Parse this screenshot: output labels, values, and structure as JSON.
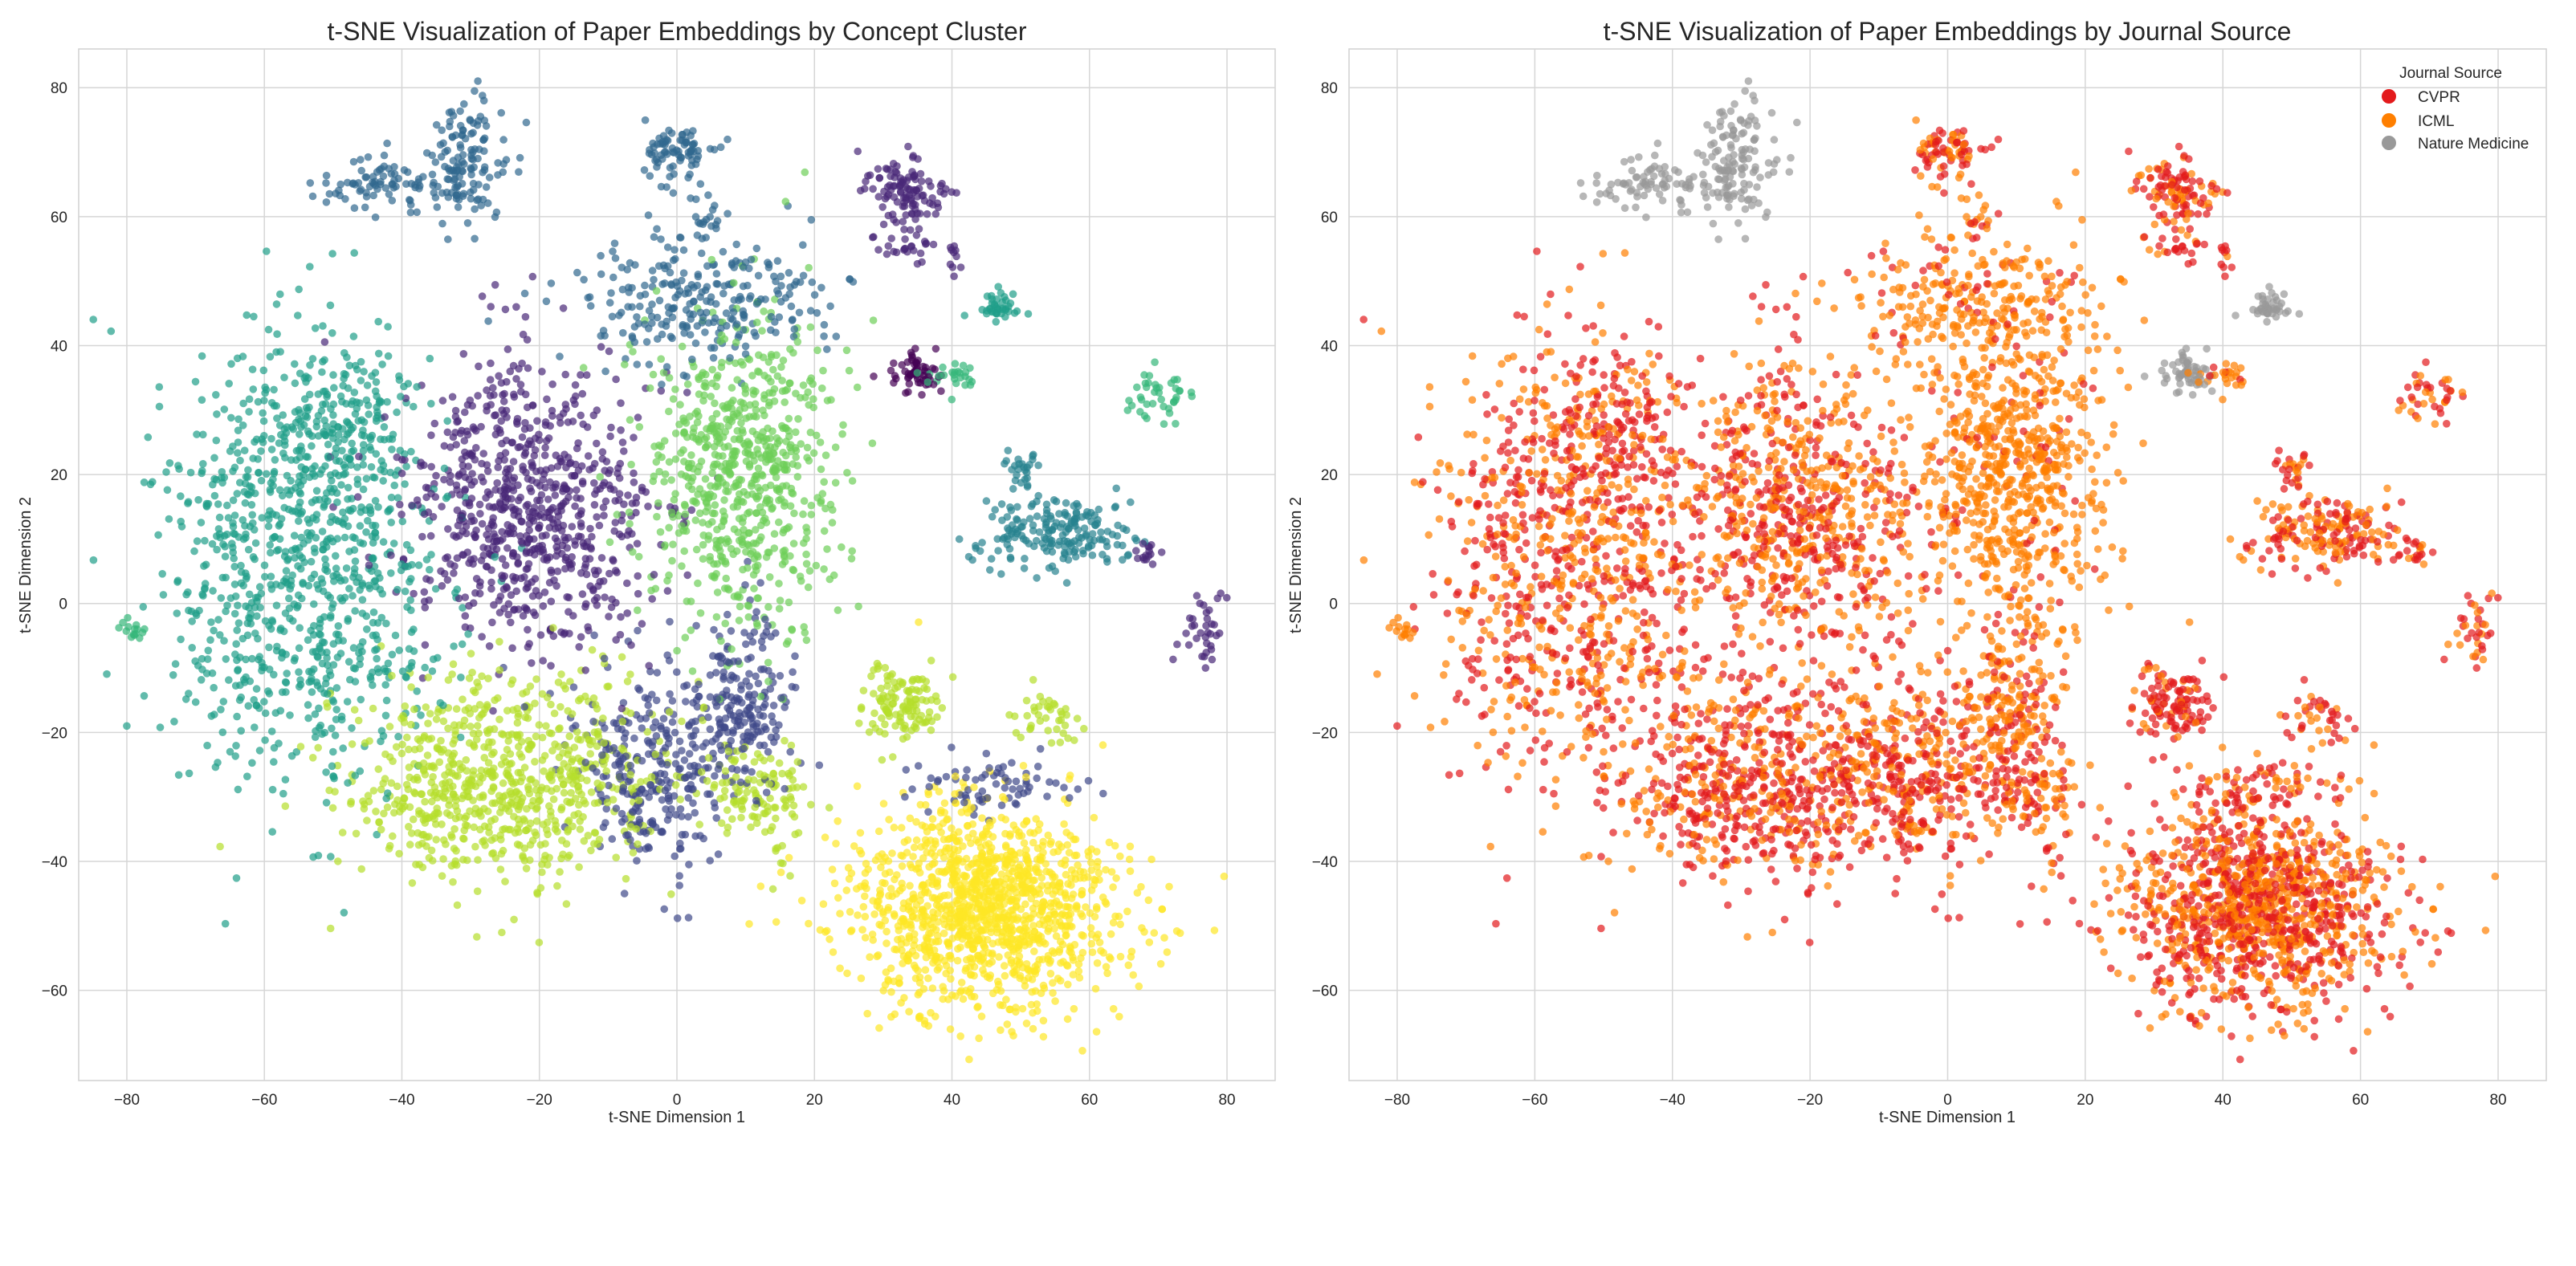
{
  "chart_data": [
    {
      "type": "scatter",
      "title": "t-SNE Visualization of Paper Embeddings by Concept Cluster",
      "xlabel": "t-SNE Dimension 1",
      "ylabel": "t-SNE Dimension 2",
      "xlim": [
        -87,
        87
      ],
      "ylim": [
        -74,
        86
      ],
      "xticks": [
        -80,
        -60,
        -40,
        -20,
        0,
        20,
        40,
        60,
        80
      ],
      "yticks": [
        -60,
        -40,
        -20,
        0,
        20,
        40,
        60,
        80
      ],
      "grid": true,
      "color_by": "concept",
      "colormap": "viridis",
      "palette": [
        "#440154",
        "#482878",
        "#3e4989",
        "#31688e",
        "#26828e",
        "#1f9e89",
        "#35b779",
        "#6ece58",
        "#b5de2b",
        "#fde725"
      ]
    },
    {
      "type": "scatter",
      "title": "t-SNE Visualization of Paper Embeddings by Journal Source",
      "xlabel": "t-SNE Dimension 1",
      "ylabel": "t-SNE Dimension 2",
      "xlim": [
        -87,
        87
      ],
      "ylim": [
        -74,
        86
      ],
      "xticks": [
        -80,
        -60,
        -40,
        -20,
        0,
        20,
        40,
        60,
        80
      ],
      "yticks": [
        -60,
        -40,
        -20,
        0,
        20,
        40,
        60,
        80
      ],
      "grid": true,
      "color_by": "journal",
      "legend": {
        "title": "Journal Source",
        "placement": "top-right",
        "entries": [
          {
            "label": "CVPR",
            "color": "#e31a1c"
          },
          {
            "label": "ICML",
            "color": "#ff7f00"
          },
          {
            "label": "Nature Medicine",
            "color": "#999999"
          }
        ]
      }
    }
  ],
  "clusters": [
    {
      "cx": -45,
      "cy": 65,
      "sx": 4,
      "sy": 2.2,
      "n": 70,
      "concept": 3,
      "mix": [
        0,
        0,
        1
      ]
    },
    {
      "cx": -31,
      "cy": 68,
      "sx": 3,
      "sy": 5,
      "n": 140,
      "concept": 3,
      "mix": [
        0,
        0,
        1
      ]
    },
    {
      "cx": 0,
      "cy": 70,
      "sx": 2.5,
      "sy": 2.2,
      "n": 80,
      "concept": 3,
      "mix": [
        0.55,
        0.45,
        0
      ]
    },
    {
      "cx": 4,
      "cy": 59,
      "sx": 1,
      "sy": 4,
      "n": 20,
      "concept": 3,
      "mix": [
        0.3,
        0.7,
        0
      ]
    },
    {
      "cx": 33,
      "cy": 64,
      "sx": 3,
      "sy": 3,
      "n": 110,
      "concept": 1,
      "mix": [
        0.6,
        0.4,
        0
      ]
    },
    {
      "cx": 33,
      "cy": 55,
      "sx": 2,
      "sy": 1.3,
      "n": 25,
      "concept": 1,
      "mix": [
        0.7,
        0.3,
        0
      ]
    },
    {
      "cx": 40,
      "cy": 54,
      "sx": 0.5,
      "sy": 2,
      "n": 10,
      "concept": 1,
      "mix": [
        0.8,
        0.2,
        0
      ]
    },
    {
      "cx": 35,
      "cy": 36,
      "sx": 2,
      "sy": 1.5,
      "n": 60,
      "concept": 0,
      "mix": [
        0,
        0,
        1
      ]
    },
    {
      "cx": 41,
      "cy": 35,
      "sx": 2,
      "sy": 1.5,
      "n": 25,
      "concept": 6,
      "mix": [
        0.2,
        0.8,
        0
      ]
    },
    {
      "cx": 47,
      "cy": 46,
      "sx": 1.8,
      "sy": 1.4,
      "n": 40,
      "concept": 5,
      "mix": [
        0,
        0,
        1
      ]
    },
    {
      "cx": 70,
      "cy": 32,
      "sx": 2.5,
      "sy": 2,
      "n": 40,
      "concept": 6,
      "mix": [
        0.5,
        0.5,
        0
      ]
    },
    {
      "cx": 50,
      "cy": 21,
      "sx": 1.5,
      "sy": 1.5,
      "n": 25,
      "concept": 4,
      "mix": [
        0.7,
        0.3,
        0
      ]
    },
    {
      "cx": 55,
      "cy": 11,
      "sx": 6,
      "sy": 3,
      "n": 190,
      "concept": 4,
      "mix": [
        0.5,
        0.5,
        0
      ]
    },
    {
      "cx": 68,
      "cy": 8,
      "sx": 1,
      "sy": 1,
      "n": 15,
      "concept": 1,
      "mix": [
        0.5,
        0.5,
        0
      ]
    },
    {
      "cx": 77,
      "cy": -4,
      "sx": 1.5,
      "sy": 2.5,
      "n": 35,
      "concept": 1,
      "mix": [
        0.6,
        0.4,
        0
      ]
    },
    {
      "cx": 4,
      "cy": 47,
      "sx": 9,
      "sy": 5,
      "n": 260,
      "concept": 3,
      "mix": [
        0.15,
        0.85,
        0
      ]
    },
    {
      "cx": -55,
      "cy": 5,
      "sx": 10,
      "sy": 16,
      "n": 900,
      "concept": 5,
      "mix": [
        0.5,
        0.5,
        0
      ]
    },
    {
      "cx": -48,
      "cy": 29,
      "sx": 5,
      "sy": 5,
      "n": 150,
      "concept": 5,
      "mix": [
        0.65,
        0.35,
        0
      ]
    },
    {
      "cx": -22,
      "cy": 15,
      "sx": 9,
      "sy": 11,
      "n": 750,
      "concept": 1,
      "mix": [
        0.45,
        0.55,
        0
      ]
    },
    {
      "cx": 10,
      "cy": 20,
      "sx": 7,
      "sy": 12,
      "n": 700,
      "concept": 7,
      "mix": [
        0.08,
        0.92,
        0
      ]
    },
    {
      "cx": -25,
      "cy": -27,
      "sx": 11,
      "sy": 8,
      "n": 750,
      "concept": 8,
      "mix": [
        0.6,
        0.4,
        0
      ]
    },
    {
      "cx": -3,
      "cy": -25,
      "sx": 6,
      "sy": 8,
      "n": 300,
      "concept": 2,
      "mix": [
        0.55,
        0.45,
        0
      ]
    },
    {
      "cx": 10,
      "cy": -15,
      "sx": 4,
      "sy": 7,
      "n": 180,
      "concept": 2,
      "mix": [
        0.25,
        0.75,
        0
      ]
    },
    {
      "cx": 12,
      "cy": -30,
      "sx": 3.5,
      "sy": 4,
      "n": 120,
      "concept": 8,
      "mix": [
        0.55,
        0.45,
        0
      ]
    },
    {
      "cx": 33,
      "cy": -16,
      "sx": 3,
      "sy": 3,
      "n": 120,
      "concept": 8,
      "mix": [
        0.75,
        0.25,
        0
      ]
    },
    {
      "cx": 45,
      "cy": -47,
      "sx": 10,
      "sy": 8,
      "n": 1250,
      "concept": 9,
      "mix": [
        0.5,
        0.5,
        0
      ]
    },
    {
      "cx": 45,
      "cy": -28,
      "sx": 6,
      "sy": 2,
      "n": 70,
      "concept": 2,
      "mix": [
        0.5,
        0.5,
        0
      ]
    },
    {
      "cx": 53,
      "cy": -18,
      "sx": 3,
      "sy": 2,
      "n": 40,
      "concept": 8,
      "mix": [
        0.7,
        0.3,
        0
      ]
    },
    {
      "cx": -79,
      "cy": -4,
      "sx": 1,
      "sy": 1,
      "n": 15,
      "concept": 6,
      "mix": [
        0.1,
        0.9,
        0
      ]
    }
  ]
}
